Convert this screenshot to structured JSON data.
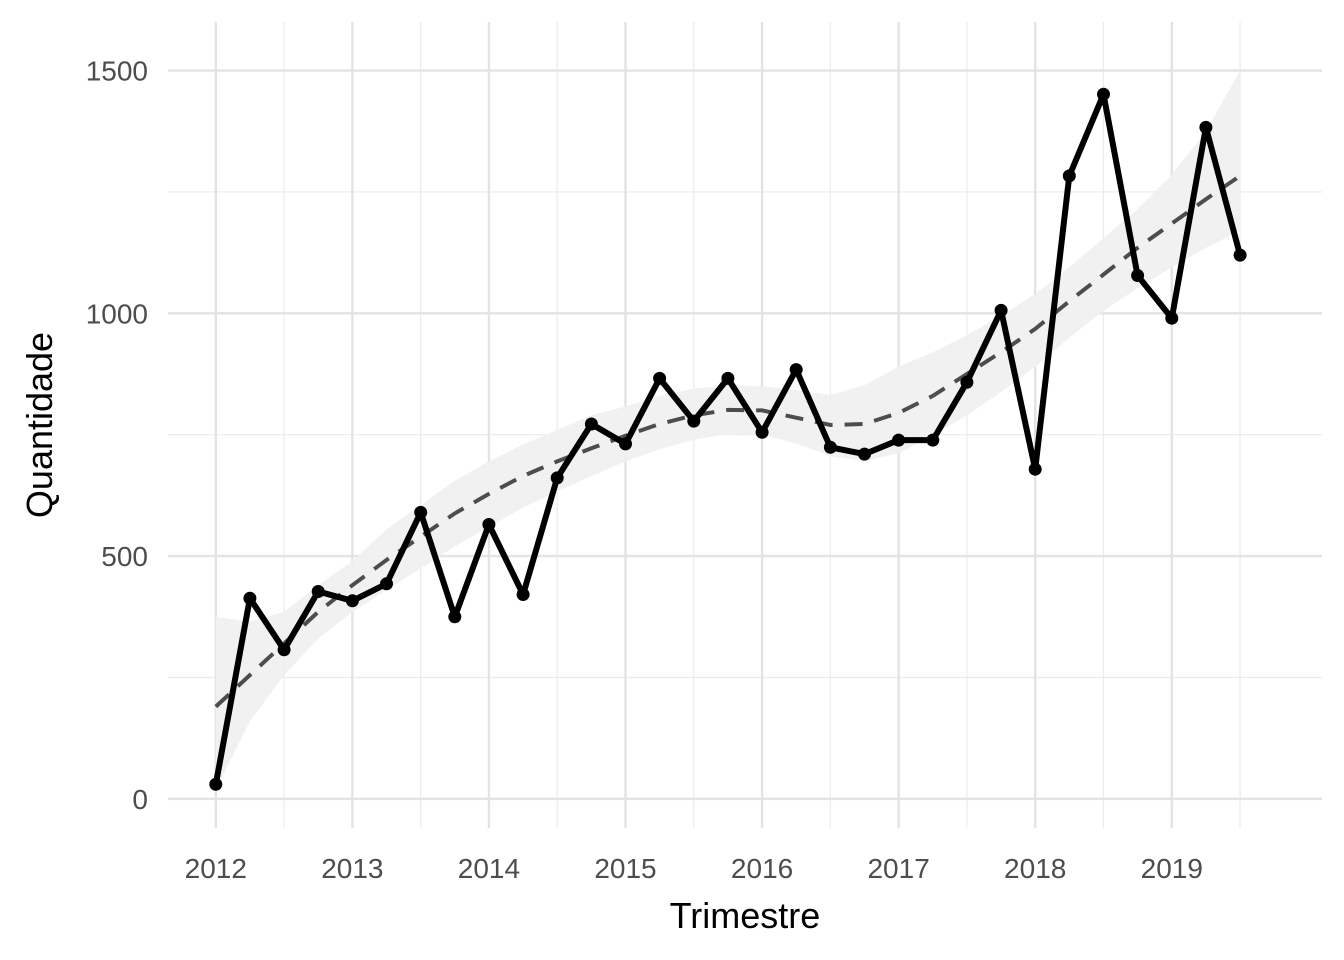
{
  "chart_data": {
    "type": "line",
    "title": "",
    "xlabel": "Trimestre",
    "ylabel": "Quantidade",
    "x_ticks": [
      "2012",
      "2013",
      "2014",
      "2015",
      "2016",
      "2017",
      "2018",
      "2019"
    ],
    "x_tick_values": [
      2012,
      2013,
      2014,
      2015,
      2016,
      2017,
      2018,
      2019
    ],
    "y_ticks": [
      "0",
      "500",
      "1000",
      "1500"
    ],
    "y_tick_values": [
      0,
      500,
      1000,
      1500
    ],
    "xlim": [
      2011.65,
      2020.1
    ],
    "ylim": [
      -60,
      1600
    ],
    "grid": true,
    "series": [
      {
        "style": "solid-line-with-points",
        "color": "#000000",
        "x": [
          2012.0,
          2012.25,
          2012.5,
          2012.75,
          2013.0,
          2013.25,
          2013.5,
          2013.75,
          2014.0,
          2014.25,
          2014.5,
          2014.75,
          2015.0,
          2015.25,
          2015.5,
          2015.75,
          2016.0,
          2016.25,
          2016.5,
          2016.75,
          2017.0,
          2017.25,
          2017.5,
          2017.75,
          2018.0,
          2018.25,
          2018.5,
          2018.75,
          2019.0,
          2019.25,
          2019.5
        ],
        "y": [
          30,
          413,
          307,
          427,
          408,
          443,
          590,
          375,
          565,
          421,
          661,
          772,
          731,
          866,
          778,
          866,
          755,
          884,
          724,
          710,
          739,
          739,
          858,
          1006,
          679,
          1283,
          1451,
          1078,
          990,
          1383,
          1120
        ]
      },
      {
        "style": "dashed-trend",
        "color": "#4d4d4d",
        "band_color": "#f0f0f0",
        "x": [
          2012.0,
          2012.25,
          2012.5,
          2012.75,
          2013.0,
          2013.25,
          2013.5,
          2013.75,
          2014.0,
          2014.25,
          2014.5,
          2014.75,
          2015.0,
          2015.25,
          2015.5,
          2015.75,
          2016.0,
          2016.25,
          2016.5,
          2016.75,
          2017.0,
          2017.25,
          2017.5,
          2017.75,
          2018.0,
          2018.25,
          2018.5,
          2018.75,
          2019.0,
          2019.25,
          2019.5
        ],
        "y": [
          190,
          255,
          320,
          385,
          440,
          492,
          540,
          588,
          628,
          665,
          695,
          722,
          748,
          772,
          790,
          801,
          800,
          785,
          770,
          772,
          795,
          830,
          875,
          920,
          968,
          1025,
          1080,
          1135,
          1185,
          1235,
          1283
        ],
        "lower": [
          20,
          160,
          255,
          330,
          385,
          430,
          475,
          520,
          560,
          600,
          633,
          665,
          695,
          720,
          740,
          752,
          750,
          732,
          706,
          695,
          712,
          748,
          790,
          838,
          890,
          950,
          1005,
          1052,
          1095,
          1135,
          1170
        ],
        "upper": [
          375,
          365,
          385,
          440,
          490,
          555,
          605,
          655,
          695,
          730,
          760,
          790,
          808,
          830,
          845,
          852,
          850,
          842,
          832,
          852,
          890,
          920,
          955,
          995,
          1040,
          1095,
          1155,
          1215,
          1285,
          1375,
          1500
        ]
      }
    ]
  }
}
